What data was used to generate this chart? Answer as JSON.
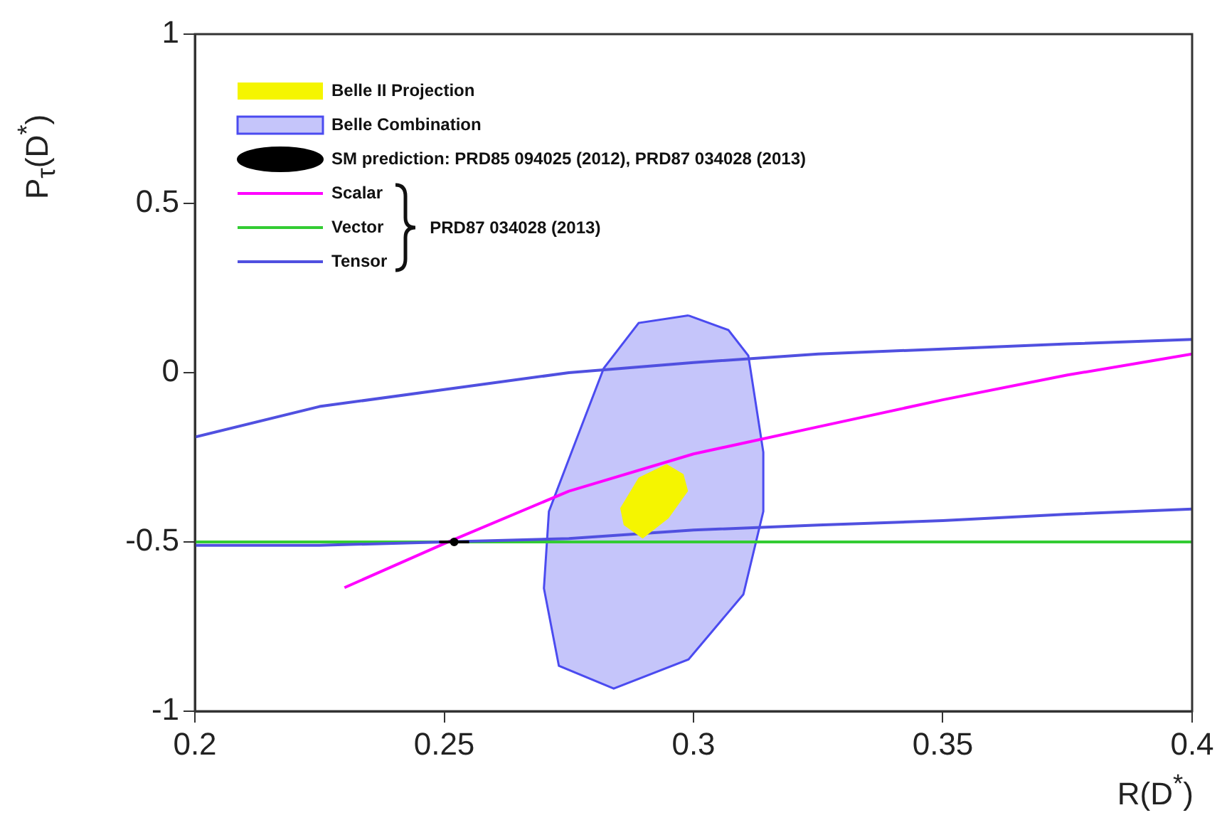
{
  "chart_data": {
    "type": "line",
    "xlabel": "R(D$^{*}$)",
    "ylabel": "P$_{τ}$(D$^{*}$)",
    "xlim": [
      0.2,
      0.4
    ],
    "xticks": [
      0.2,
      0.25,
      0.3,
      0.35,
      0.4
    ],
    "ylim": [
      -1,
      1
    ],
    "yticks": [
      -1,
      -0.5,
      0,
      0.5,
      1
    ],
    "grid": false,
    "legend": "top left",
    "annotations": [
      "PRD87 034028 (2013)"
    ],
    "series": [
      {
        "name": "Belle II Projection",
        "type": "area",
        "color": "#f5f500",
        "x": [
          0.2946,
          0.298,
          0.2989,
          0.295,
          0.2898,
          0.286,
          0.2853,
          0.289,
          0.2946
        ],
        "values": [
          -0.27,
          -0.3,
          -0.35,
          -0.43,
          -0.49,
          -0.45,
          -0.4,
          -0.31,
          -0.27
        ]
      },
      {
        "name": "Belle Combination",
        "type": "area",
        "color": "#4b4bf0",
        "x": [
          0.299,
          0.307,
          0.311,
          0.314,
          0.314,
          0.31,
          0.299,
          0.284,
          0.273,
          0.27,
          0.271,
          0.276,
          0.282,
          0.289,
          0.299
        ],
        "values": [
          0.169,
          0.126,
          0.05,
          -0.235,
          -0.41,
          -0.655,
          -0.847,
          -0.933,
          -0.866,
          -0.637,
          -0.41,
          -0.217,
          0.013,
          0.147,
          0.169
        ]
      },
      {
        "name": "SM prediction: PRD85 094025 (2012), PRD87 034028 (2013)",
        "type": "scatter",
        "color": "#000000",
        "x": [
          0.252
        ],
        "values": [
          -0.5
        ],
        "xerrors": [
          0.003
        ]
      },
      {
        "name": "Scalar",
        "color": "#ff00ff",
        "x": [
          0.23,
          0.25,
          0.275,
          0.3,
          0.325,
          0.35,
          0.375,
          0.4
        ],
        "values": [
          -0.635,
          -0.505,
          -0.35,
          -0.24,
          -0.16,
          -0.08,
          -0.007,
          0.055
        ]
      },
      {
        "name": "Vector",
        "color": "#33cc33",
        "x": [
          0.2,
          0.4
        ],
        "values": [
          -0.5,
          -0.5
        ]
      },
      {
        "name": "Tensor",
        "color": "#5050e0",
        "x": [
          0.2,
          0.225,
          0.25,
          0.275,
          0.3,
          0.325,
          0.35,
          0.375,
          0.4,
          null,
          0.4,
          0.375,
          0.35,
          0.325,
          0.3,
          0.275,
          0.25,
          0.225,
          0.2
        ],
        "values": [
          -0.19,
          -0.1,
          -0.05,
          0,
          0.03,
          0.055,
          0.07,
          0.085,
          0.098,
          null,
          -0.403,
          -0.418,
          -0.437,
          -0.45,
          -0.465,
          -0.49,
          -0.5,
          -0.51,
          -0.51
        ]
      }
    ]
  }
}
